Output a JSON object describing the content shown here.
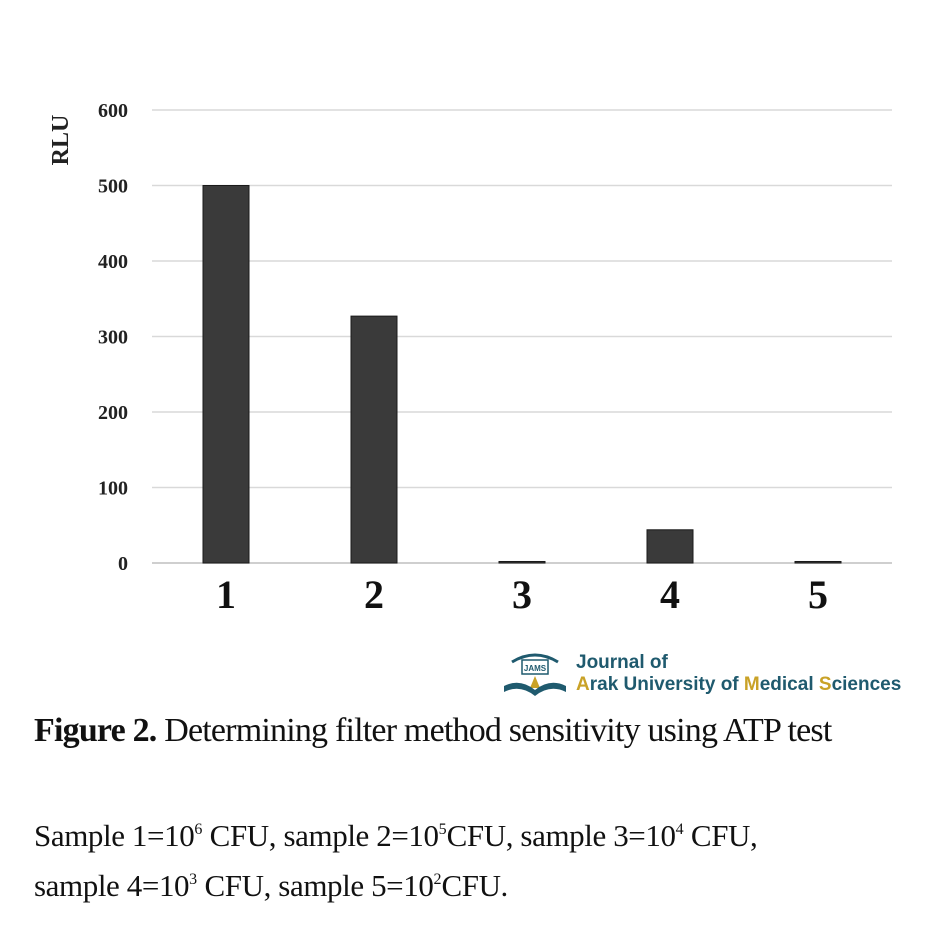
{
  "chart_data": {
    "type": "bar",
    "categories": [
      "1",
      "2",
      "3",
      "4",
      "5"
    ],
    "values": [
      500,
      327,
      2,
      44,
      2
    ],
    "ylabel": "RLU",
    "xlabel": "",
    "ylim": [
      0,
      600
    ],
    "yticks": [
      "0",
      "100",
      "200",
      "300",
      "400",
      "500",
      "600"
    ],
    "grid": true,
    "bar_color": "#3a3a3a"
  },
  "logo": {
    "line1": "Journal of",
    "line2_parts": [
      "A",
      "rak University of ",
      "M",
      "edical ",
      "S",
      "ciences"
    ],
    "emblem_text": "JAMS"
  },
  "caption": {
    "label": "Figure 2.",
    "text": " Determining filter method sensitivity using ATP test"
  },
  "note": {
    "s1a": "Sample 1=10",
    "s1exp": "6",
    "s1b": " CFU, sample 2=10",
    "s2exp": "5",
    "s2b": "CFU, sample 3=10",
    "s3exp": "4",
    "s3b": " CFU,",
    "s4a": "sample 4=10",
    "s4exp": "3",
    "s4b": " CFU, sample 5=10",
    "s5exp": "2",
    "s5b": "CFU."
  }
}
